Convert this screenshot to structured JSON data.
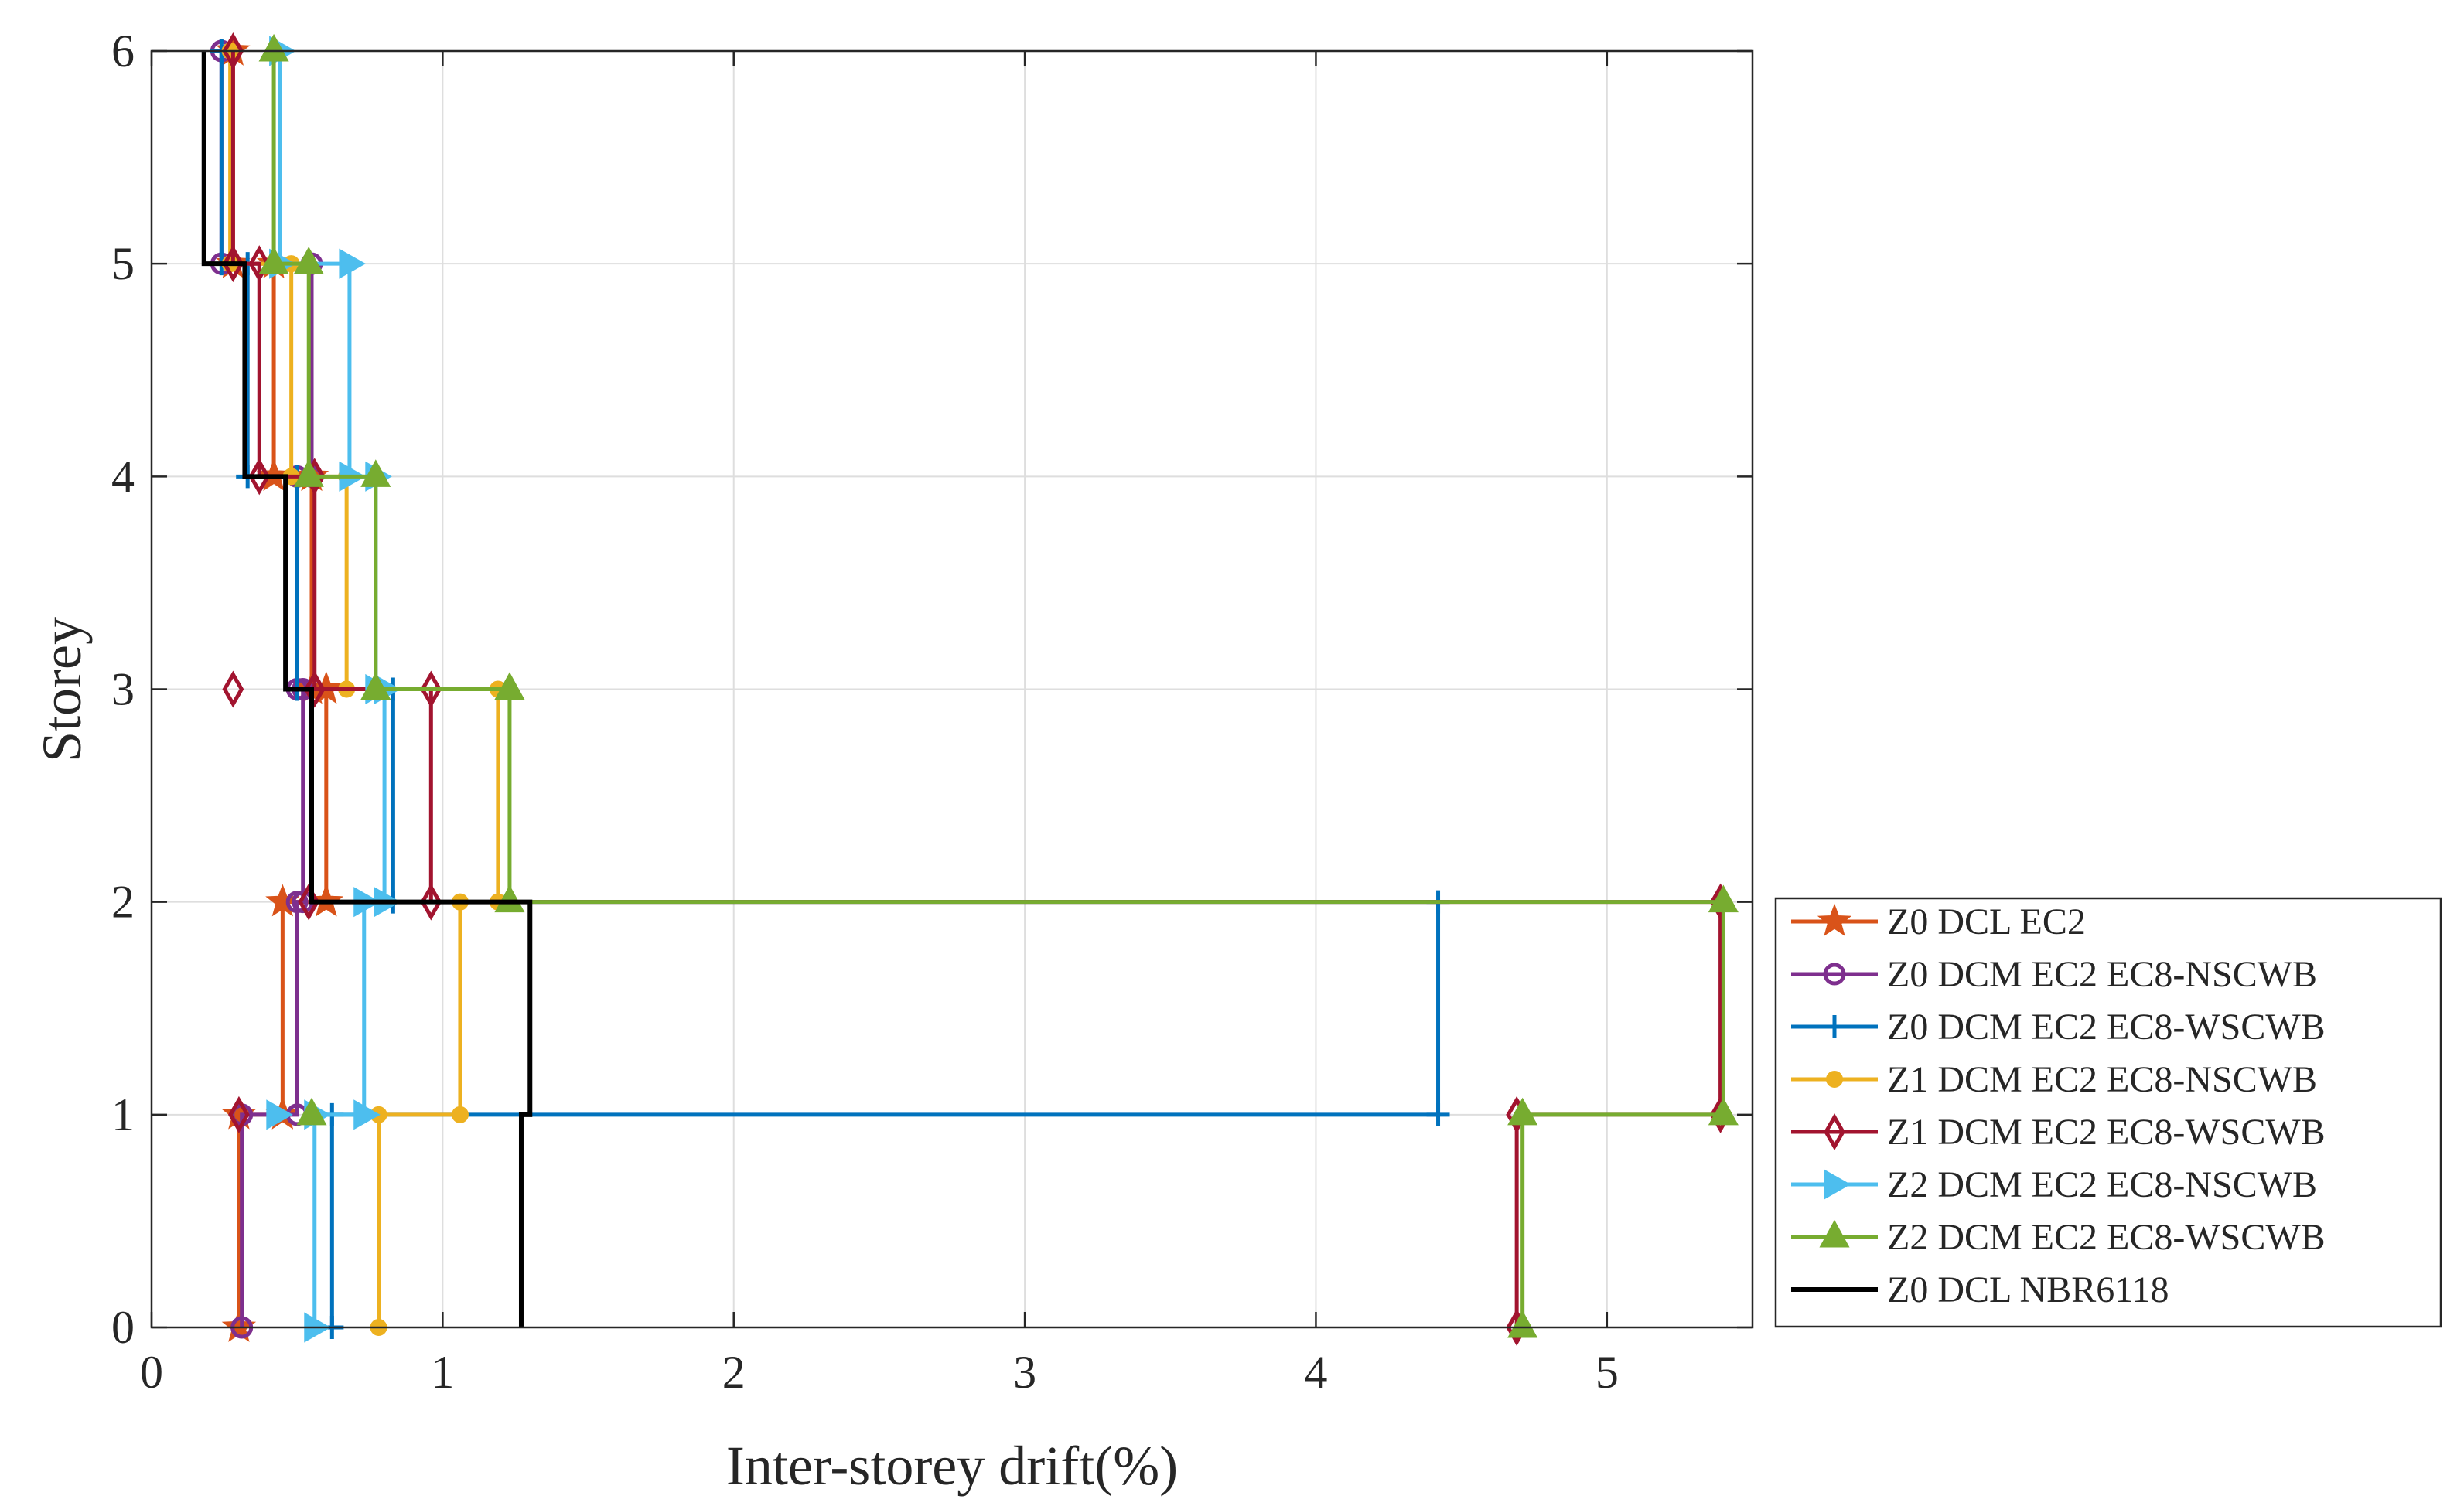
{
  "chart_data": {
    "type": "line",
    "xlabel": "Inter-storey drift(%)",
    "ylabel": "Storey",
    "xlim": [
      0,
      5.5
    ],
    "ylim": [
      0,
      6
    ],
    "xticks": [
      "0",
      "1",
      "2",
      "3",
      "4",
      "5"
    ],
    "yticks": [
      "0",
      "1",
      "2",
      "3",
      "4",
      "5",
      "6"
    ],
    "grid": true,
    "legend_position": "lower-right outside",
    "series": [
      {
        "name": "Z0 DCL EC2",
        "color": "#D95319",
        "marker": "star",
        "drift": [
          0.3,
          0.45,
          0.6,
          0.55,
          0.42,
          0.28
        ],
        "marker_values": [
          0.45,
          0.6
        ]
      },
      {
        "name": "Z0 DCM EC2 EC8-NSCWB",
        "color": "#7E2F8E",
        "marker": "circle",
        "drift": [
          0.31,
          0.5,
          0.52,
          0.5,
          0.55,
          0.24
        ],
        "marker_values": []
      },
      {
        "name": "Z0 DCM EC2 EC8-WSCWB",
        "color": "#0072BD",
        "marker": "plus",
        "drift": [
          0.62,
          4.42,
          0.83,
          0.5,
          0.33,
          0.24
        ],
        "marker_values": []
      },
      {
        "name": "Z1 DCM EC2 EC8-NSCWB",
        "color": "#EDB120",
        "marker": "dot",
        "drift": [
          0.78,
          1.06,
          1.19,
          0.67,
          0.48,
          0.27
        ],
        "marker_values": []
      },
      {
        "name": "Z1 DCM EC2 EC8-WSCWB",
        "color": "#A2142F",
        "marker": "diamond",
        "drift": [
          4.69,
          5.39,
          0.96,
          0.56,
          0.37,
          0.28
        ],
        "marker_values": [
          0.3,
          0.54,
          0.28
        ]
      },
      {
        "name": "Z2 DCM EC2 EC8-NSCWB",
        "color": "#4DBEEE",
        "marker": "triangle-right",
        "drift": [
          0.56,
          0.73,
          0.8,
          0.77,
          0.68,
          0.44
        ],
        "marker_values": [
          0.43
        ]
      },
      {
        "name": "Z2 DCM EC2 EC8-WSCWB",
        "color": "#77AC30",
        "marker": "triangle-up",
        "drift": [
          4.71,
          5.4,
          1.23,
          0.77,
          0.54,
          0.42
        ],
        "marker_values": [
          0.55
        ]
      },
      {
        "name": "Z0 DCL NBR6118",
        "color": "#000000",
        "marker": "none",
        "drift": [
          1.27,
          1.3,
          0.55,
          0.46,
          0.32,
          0.18
        ],
        "marker_values": []
      }
    ]
  }
}
